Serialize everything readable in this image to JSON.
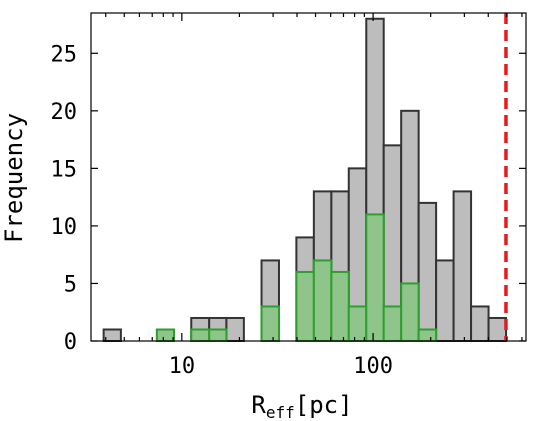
{
  "chart_data": {
    "type": "histogram",
    "x_scale": "log",
    "xlim": [
      3.35,
      630
    ],
    "ylim": [
      0,
      28.5
    ],
    "xlabel": {
      "main": "R",
      "sub": "eff",
      "unit": "[pc]"
    },
    "ylabel": "Frequency",
    "x_ticks": [
      {
        "value": 10,
        "label": "10"
      },
      {
        "value": 100,
        "label": "100"
      }
    ],
    "y_ticks": [
      {
        "value": 0,
        "label": "0"
      },
      {
        "value": 5,
        "label": "5"
      },
      {
        "value": 10,
        "label": "10"
      },
      {
        "value": 15,
        "label": "15"
      },
      {
        "value": 20,
        "label": "20"
      },
      {
        "value": 25,
        "label": "25"
      }
    ],
    "bin_edges": [
      3.9,
      4.8,
      6.0,
      7.4,
      9.1,
      11.2,
      13.9,
      17.1,
      21.1,
      26.1,
      32.2,
      39.7,
      49.0,
      60.5,
      74.6,
      92.1,
      113.6,
      140.2,
      173.0,
      213.5,
      263.5,
      325.2,
      401.4,
      495.4,
      611.4
    ],
    "series": [
      {
        "color": "#bdbdbd",
        "edge_color": "#333333",
        "values": [
          1,
          0,
          0,
          0,
          0,
          2,
          2,
          2,
          0,
          7,
          0,
          9,
          13,
          13,
          15,
          28,
          17,
          20,
          12,
          7,
          13,
          3,
          2,
          0
        ]
      },
      {
        "color": "#8fc48a",
        "edge_color": "#2ca02c",
        "values": [
          0,
          0,
          0,
          1,
          0,
          1,
          1,
          0,
          0,
          3,
          0,
          6,
          7,
          6,
          3,
          11,
          3,
          5,
          1,
          0,
          0,
          0,
          0,
          0
        ]
      }
    ],
    "reference_line": {
      "x": 495,
      "color": "#e8191b",
      "style": "dashed"
    },
    "grid": false,
    "legend": "none"
  }
}
